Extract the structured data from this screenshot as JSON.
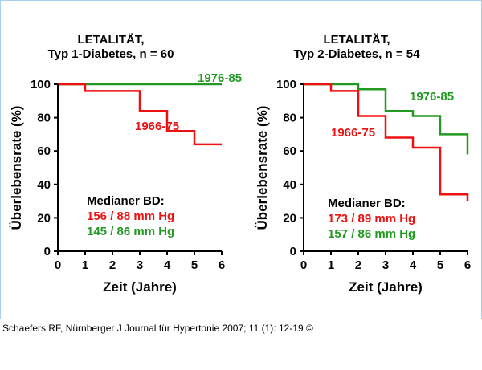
{
  "caption": "Schaefers RF, Nürnberger J Journal für Hypertonie 2007; 11 (1): 12-19 ©",
  "colors": {
    "red": "#ee1111",
    "green": "#229922",
    "axis": "#000000"
  },
  "chart_data": [
    {
      "type": "line",
      "step": true,
      "title": [
        "LETALITÄT,",
        "Typ 1-Diabetes, n = 60"
      ],
      "xlabel": "Zeit (Jahre)",
      "ylabel": "Überlebensrate (%)",
      "xlim": [
        0,
        6
      ],
      "ylim": [
        0,
        100
      ],
      "xticks": [
        "0",
        "1",
        "2",
        "3",
        "4",
        "5",
        "6"
      ],
      "yticks": [
        "0",
        "20",
        "40",
        "60",
        "80",
        "100"
      ],
      "grid": false,
      "series": [
        {
          "name": "1976-85",
          "color": "#229922",
          "x": [
            0,
            6
          ],
          "y": [
            100,
            100
          ]
        },
        {
          "name": "1966-75",
          "color": "#ee1111",
          "x": [
            0,
            1,
            3,
            4,
            5,
            6
          ],
          "y": [
            100,
            96,
            84,
            72,
            64,
            64
          ]
        }
      ],
      "annotation": {
        "heading": "Medianer BD:",
        "lines": [
          {
            "text": "156 / 88  mm Hg",
            "color": "#ee1111"
          },
          {
            "text": "145 / 86  mm Hg",
            "color": "#229922"
          }
        ]
      }
    },
    {
      "type": "line",
      "step": true,
      "title": [
        "LETALITÄT,",
        "Typ 2-Diabetes, n = 54"
      ],
      "xlabel": "Zeit (Jahre)",
      "ylabel": "Überlebensrate (%)",
      "xlim": [
        0,
        6
      ],
      "ylim": [
        0,
        100
      ],
      "xticks": [
        "0",
        "1",
        "2",
        "3",
        "4",
        "5",
        "6"
      ],
      "yticks": [
        "0",
        "20",
        "40",
        "60",
        "80",
        "100"
      ],
      "grid": false,
      "series": [
        {
          "name": "1976-85",
          "color": "#229922",
          "x": [
            0,
            2,
            3,
            4,
            5,
            6
          ],
          "y": [
            100,
            97,
            84,
            81,
            70,
            58
          ]
        },
        {
          "name": "1966-75",
          "color": "#ee1111",
          "x": [
            0,
            1,
            2,
            3,
            4,
            5,
            6
          ],
          "y": [
            100,
            96,
            81,
            68,
            62,
            34,
            30
          ]
        }
      ],
      "annotation": {
        "heading": "Medianer BD:",
        "lines": [
          {
            "text": "173 / 89  mm Hg",
            "color": "#ee1111"
          },
          {
            "text": "157 / 86  mm Hg",
            "color": "#229922"
          }
        ]
      }
    }
  ]
}
